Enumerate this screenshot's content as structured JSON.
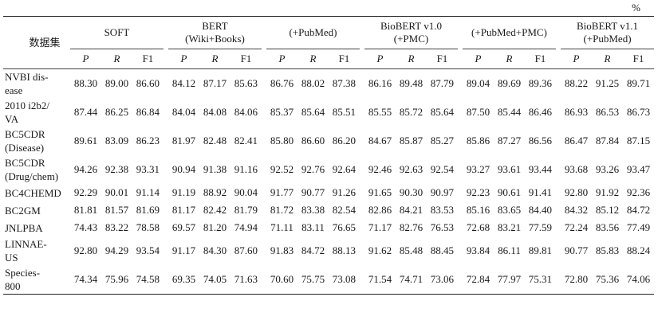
{
  "unit": "%",
  "header": {
    "dataset": "数据集",
    "groups": [
      {
        "line1": "SOFT",
        "line2": ""
      },
      {
        "line1": "BERT",
        "line2": "(Wiki+Books)"
      },
      {
        "line1": "(+PubMed)",
        "line2": ""
      },
      {
        "line1": "BioBERT v1.0",
        "line2": "(+PMC)"
      },
      {
        "line1": "(+PubMed+PMC)",
        "line2": ""
      },
      {
        "line1": "BioBERT v1.1",
        "line2": "(+PubMed)"
      }
    ],
    "metrics": [
      "P",
      "R",
      "F1"
    ]
  },
  "rows": [
    {
      "line1": "NVBI dis-",
      "line2": "ease",
      "values": [
        "88.30",
        "89.00",
        "86.60",
        "84.12",
        "87.17",
        "85.63",
        "86.76",
        "88.02",
        "87.38",
        "86.16",
        "89.48",
        "87.79",
        "89.04",
        "89.69",
        "89.36",
        "88.22",
        "91.25",
        "89.71"
      ]
    },
    {
      "line1": "2010 i2b2/",
      "line2": "VA",
      "values": [
        "87.44",
        "86.25",
        "86.84",
        "84.04",
        "84.08",
        "84.06",
        "85.37",
        "85.64",
        "85.51",
        "85.55",
        "85.72",
        "85.64",
        "87.50",
        "85.44",
        "86.46",
        "86.93",
        "86.53",
        "86.73"
      ]
    },
    {
      "line1": "BC5CDR",
      "line2": "(Disease)",
      "values": [
        "89.61",
        "83.09",
        "86.23",
        "81.97",
        "82.48",
        "82.41",
        "85.80",
        "86.60",
        "86.20",
        "84.67",
        "85.87",
        "85.27",
        "85.86",
        "87.27",
        "86.56",
        "86.47",
        "87.84",
        "87.15"
      ]
    },
    {
      "line1": "BC5CDR",
      "line2": "(Drug/chem)",
      "values": [
        "94.26",
        "92.38",
        "93.31",
        "90.94",
        "91.38",
        "91.16",
        "92.52",
        "92.76",
        "92.64",
        "92.46",
        "92.63",
        "92.54",
        "93.27",
        "93.61",
        "93.44",
        "93.68",
        "93.26",
        "93.47"
      ]
    },
    {
      "line1": "BC4CHEMD",
      "line2": "",
      "values": [
        "92.29",
        "90.01",
        "91.14",
        "91.19",
        "88.92",
        "90.04",
        "91.77",
        "90.77",
        "91.26",
        "91.65",
        "90.30",
        "90.97",
        "92.23",
        "90.61",
        "91.41",
        "92.80",
        "91.92",
        "92.36"
      ]
    },
    {
      "line1": "BC2GM",
      "line2": "",
      "values": [
        "81.81",
        "81.57",
        "81.69",
        "81.17",
        "82.42",
        "81.79",
        "81.72",
        "83.38",
        "82.54",
        "82.86",
        "84.21",
        "83.53",
        "85.16",
        "83.65",
        "84.40",
        "84.32",
        "85.12",
        "84.72"
      ]
    },
    {
      "line1": "JNLPBA",
      "line2": "",
      "values": [
        "74.43",
        "83.22",
        "78.58",
        "69.57",
        "81.20",
        "74.94",
        "71.11",
        "83.11",
        "76.65",
        "71.17",
        "82.76",
        "76.53",
        "72.68",
        "83.21",
        "77.59",
        "72.24",
        "83.56",
        "77.49"
      ]
    },
    {
      "line1": "LINNAE-",
      "line2": "US",
      "values": [
        "92.80",
        "94.29",
        "93.54",
        "91.17",
        "84.30",
        "87.60",
        "91.83",
        "84.72",
        "88.13",
        "91.62",
        "85.48",
        "88.45",
        "93.84",
        "86.11",
        "89.81",
        "90.77",
        "85.83",
        "88.24"
      ]
    },
    {
      "line1": "Species-",
      "line2": "800",
      "values": [
        "74.34",
        "75.96",
        "74.58",
        "69.35",
        "74.05",
        "71.63",
        "70.60",
        "75.75",
        "73.08",
        "71.54",
        "74.71",
        "73.06",
        "72.84",
        "77.97",
        "75.31",
        "72.80",
        "75.36",
        "74.06"
      ]
    }
  ]
}
